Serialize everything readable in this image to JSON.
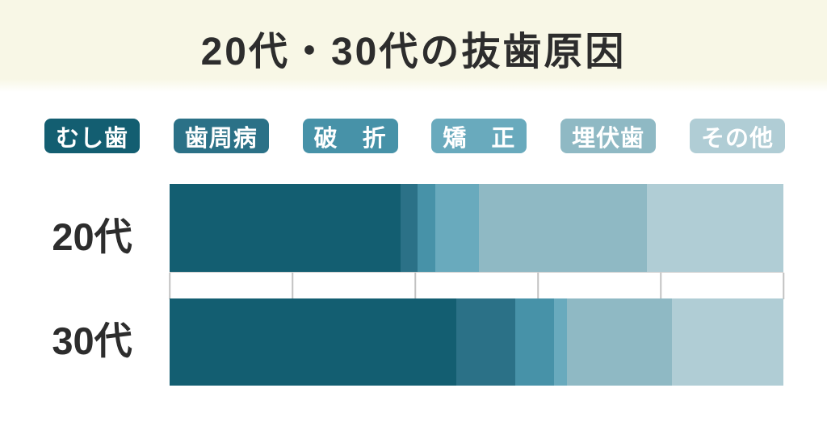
{
  "title": "20代・30代の抜歯原因",
  "legend": {
    "items": [
      {
        "label": "むし歯",
        "color": "#135e71"
      },
      {
        "label": "歯周病",
        "color": "#2b7187"
      },
      {
        "label": "破　折",
        "color": "#4792a8"
      },
      {
        "label": "矯　正",
        "color": "#69aabd"
      },
      {
        "label": "埋伏歯",
        "color": "#8fb9c4"
      },
      {
        "label": "その他",
        "color": "#b0cdd5"
      }
    ]
  },
  "chart_data": {
    "type": "bar",
    "variant": "horizontal-stacked-100percent",
    "title": "20代・30代の抜歯原因",
    "categories": [
      "20代",
      "30代"
    ],
    "series": [
      {
        "name": "むし歯",
        "color": "#135e71",
        "values": [
          37.6,
          46.7
        ]
      },
      {
        "name": "歯周病",
        "color": "#2b7187",
        "values": [
          2.8,
          9.6
        ]
      },
      {
        "name": "破折",
        "color": "#4792a8",
        "values": [
          2.9,
          6.3
        ]
      },
      {
        "name": "矯正",
        "color": "#69aabd",
        "values": [
          7.1,
          2.1
        ]
      },
      {
        "name": "埋伏歯",
        "color": "#8fb9c4",
        "values": [
          27.4,
          17.1
        ]
      },
      {
        "name": "その他",
        "color": "#b0cdd5",
        "values": [
          22.2,
          18.2
        ]
      }
    ],
    "xlim": [
      0,
      100
    ],
    "x_unit": "percent",
    "gridline_step_percent": 20,
    "grid": "vertical-between-rows",
    "legend_position": "top",
    "data_labels": false,
    "background_colors": {
      "banner": "#f8f7e6",
      "chart": "#ffffff"
    }
  }
}
